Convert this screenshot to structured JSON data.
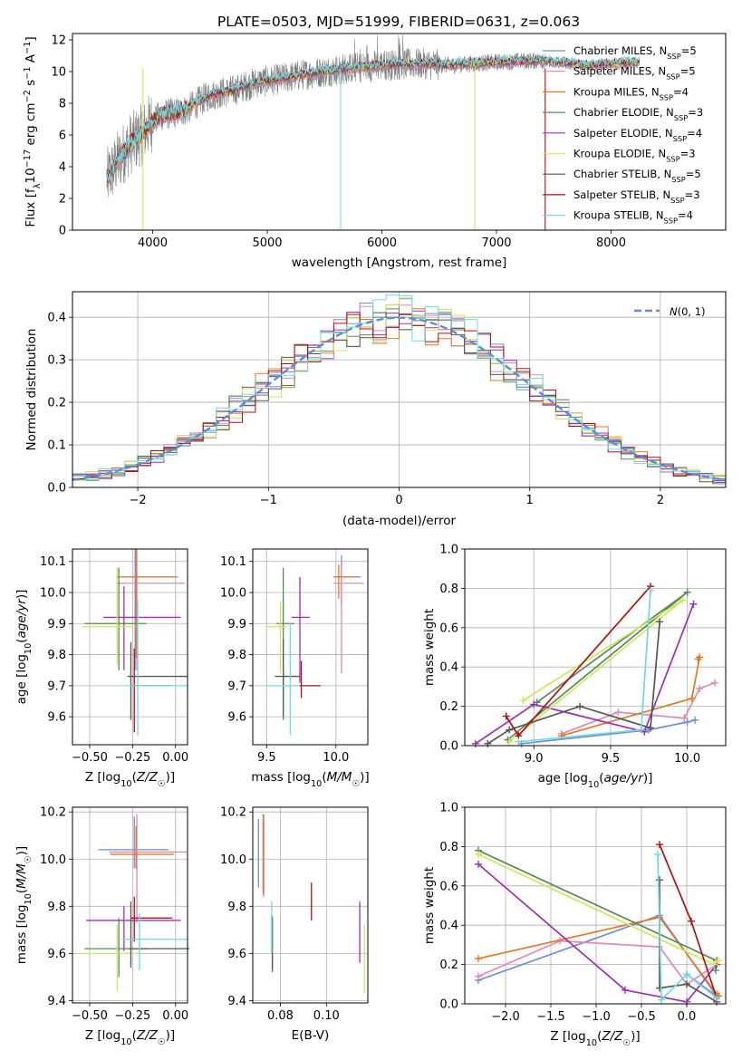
{
  "figure": {
    "title": "PLATE=0503, MJD=51999, FIBERID=0631, z=0.063"
  },
  "models": [
    {
      "label": "Chabrier MILES, N",
      "sub": "SSP",
      "tail": "=5",
      "color": "#6f8fd6"
    },
    {
      "label": "Salpeter MILES, N",
      "sub": "SSP",
      "tail": "=5",
      "color": "#e088b8"
    },
    {
      "label": "Kroupa MILES, N",
      "sub": "SSP",
      "tail": "=4",
      "color": "#e07a20"
    },
    {
      "label": "Chabrier ELODIE, N",
      "sub": "SSP",
      "tail": "=3",
      "color": "#5a8a5a"
    },
    {
      "label": "Salpeter ELODIE, N",
      "sub": "SSP",
      "tail": "=4",
      "color": "#9b30b0"
    },
    {
      "label": "Kroupa ELODIE, N",
      "sub": "SSP",
      "tail": "=3",
      "color": "#cce85a"
    },
    {
      "label": "Chabrier STELIB, N",
      "sub": "SSP",
      "tail": "=5",
      "color": "#555555"
    },
    {
      "label": "Salpeter STELIB, N",
      "sub": "SSP",
      "tail": "=3",
      "color": "#b01010"
    },
    {
      "label": "Kroupa STELIB, N",
      "sub": "SSP",
      "tail": "=4",
      "color": "#70d8e0"
    }
  ],
  "chart_data": [
    {
      "id": "spectrum",
      "type": "line",
      "xlabel": "wavelength [Angstrom, rest frame]",
      "ylabel_parts": [
        "Flux [f",
        "λ",
        "10",
        "−17",
        " erg cm",
        "−2",
        " s",
        "−1",
        " A",
        "−1",
        "]"
      ],
      "xlim": [
        3300,
        9000
      ],
      "ylim": [
        0,
        12.4
      ],
      "xticks": [
        4000,
        5000,
        6000,
        7000,
        8000
      ],
      "yticks": [
        0,
        2,
        4,
        6,
        8,
        10,
        12
      ],
      "data_color": "#808080",
      "data_x_range": [
        3600,
        7430
      ],
      "model_x_range": [
        3600,
        8250
      ],
      "continuum": [
        [
          3600,
          3.2
        ],
        [
          3700,
          4.4
        ],
        [
          3800,
          5.4
        ],
        [
          3900,
          6.0
        ],
        [
          4000,
          6.9
        ],
        [
          4100,
          7.3
        ],
        [
          4200,
          7.4
        ],
        [
          4300,
          7.6
        ],
        [
          4400,
          8.1
        ],
        [
          4500,
          8.5
        ],
        [
          4700,
          8.8
        ],
        [
          4900,
          9.3
        ],
        [
          5100,
          9.5
        ],
        [
          5300,
          9.8
        ],
        [
          5500,
          10.0
        ],
        [
          5700,
          10.2
        ],
        [
          6000,
          10.4
        ],
        [
          6300,
          10.5
        ],
        [
          6600,
          10.4
        ],
        [
          7000,
          10.6
        ],
        [
          7400,
          10.7
        ],
        [
          7800,
          10.4
        ],
        [
          8250,
          10.6
        ]
      ]
    },
    {
      "id": "residuals",
      "type": "step",
      "xlabel": "(data-model)/error",
      "ylabel": "Normed distribution",
      "xlim": [
        -2.5,
        2.5
      ],
      "ylim": [
        0,
        0.46
      ],
      "xticks": [
        -2,
        -1,
        0,
        1,
        2
      ],
      "yticks": [
        0.0,
        0.1,
        0.2,
        0.3,
        0.4
      ],
      "bin_width": 0.1,
      "reference": {
        "name": "N(0,1)",
        "mean": 0,
        "sigma": 1,
        "color": "#5b8ed6"
      }
    },
    {
      "id": "age-vs-Z",
      "type": "errorbar",
      "xlabel": "Z [log10(Z/Z☉)]",
      "ylabel": "age  [log10(age/yr)]",
      "xlim": [
        -0.6,
        0.07
      ],
      "ylim": [
        9.51,
        10.14
      ],
      "xticks": [
        -0.5,
        -0.25,
        0.0
      ],
      "yticks": [
        9.6,
        9.7,
        9.8,
        9.9,
        10.0,
        10.1
      ],
      "points": [
        {
          "x": -0.235,
          "y": 10.05,
          "xerr": [
            0.11,
            0.25
          ],
          "yerr": [
            0.3,
            0.09
          ]
        },
        {
          "x": -0.225,
          "y": 10.03,
          "xerr": [
            0.12,
            0.28
          ],
          "yerr": [
            0.28,
            0.11
          ]
        },
        {
          "x": -0.23,
          "y": 10.05,
          "xerr": [
            0.11,
            0.23
          ],
          "yerr": [
            0.26,
            0.09
          ]
        },
        {
          "x": -0.33,
          "y": 9.9,
          "xerr": [
            0.2,
            0.16
          ],
          "yerr": [
            0.15,
            0.18
          ]
        },
        {
          "x": -0.3,
          "y": 9.92,
          "xerr": [
            0.12,
            0.33
          ],
          "yerr": [
            0.17,
            0.1
          ]
        },
        {
          "x": -0.34,
          "y": 9.89,
          "xerr": [
            0.21,
            0.11
          ],
          "yerr": [
            0.12,
            0.19
          ]
        },
        {
          "x": -0.26,
          "y": 9.73,
          "xerr": [
            0.02,
            0.33
          ],
          "yerr": [
            0.14,
            0.11
          ]
        },
        {
          "x": -0.24,
          "y": 9.7,
          "xerr": [
            0.02,
            0.22
          ],
          "yerr": [
            0.15,
            0.12
          ]
        },
        {
          "x": -0.22,
          "y": 9.7,
          "xerr": [
            0.07,
            0.29
          ],
          "yerr": [
            0.16,
            0.28
          ]
        }
      ]
    },
    {
      "id": "age-vs-mass",
      "type": "errorbar",
      "xlabel": "mass [log10(M/M☉)]",
      "ylabel": "",
      "xlim": [
        9.4,
        10.23
      ],
      "ylim": [
        9.51,
        10.14
      ],
      "xticks": [
        9.5,
        10.0
      ],
      "yticks": [
        9.6,
        9.7,
        9.8,
        9.9,
        10.0,
        10.1
      ],
      "points": [
        {
          "x": 10.04,
          "y": 10.05,
          "xerr": [
            0.06,
            0.14
          ],
          "yerr": [
            0.09,
            0.07
          ]
        },
        {
          "x": 10.04,
          "y": 10.03,
          "xerr": [
            0.06,
            0.16
          ],
          "yerr": [
            0.29,
            0.07
          ]
        },
        {
          "x": 10.02,
          "y": 10.05,
          "xerr": [
            0.03,
            0.14
          ],
          "yerr": [
            0.07,
            0.04
          ]
        },
        {
          "x": 9.62,
          "y": 9.9,
          "xerr": [
            0.05,
            0.08
          ],
          "yerr": [
            0.31,
            0.18
          ]
        },
        {
          "x": 9.74,
          "y": 9.92,
          "xerr": [
            0.06,
            0.07
          ],
          "yerr": [
            0.21,
            0.13
          ]
        },
        {
          "x": 9.6,
          "y": 9.89,
          "xerr": [
            0.11,
            0.04
          ],
          "yerr": [
            0.15,
            0.08
          ]
        },
        {
          "x": 9.62,
          "y": 9.73,
          "xerr": [
            0.06,
            0.12
          ],
          "yerr": [
            0.13,
            0.12
          ]
        },
        {
          "x": 9.75,
          "y": 9.7,
          "xerr": [
            0.02,
            0.14
          ],
          "yerr": [
            0.04,
            0.08
          ]
        },
        {
          "x": 9.67,
          "y": 9.7,
          "xerr": [
            0.17,
            0.07
          ],
          "yerr": [
            0.16,
            0.2
          ]
        }
      ]
    },
    {
      "id": "weight-vs-age",
      "type": "line",
      "xlabel": "age  [log10(age/yr)]",
      "ylabel": "mass weight",
      "xlim": [
        8.55,
        10.25
      ],
      "ylim": [
        0,
        1.0
      ],
      "xticks": [
        9.0,
        9.5,
        10.0
      ],
      "yticks": [
        0.0,
        0.2,
        0.4,
        0.6,
        0.8,
        1.0
      ],
      "series": [
        {
          "x": [
            8.92,
            9.75,
            10.0,
            10.05
          ],
          "y": [
            0.01,
            0.08,
            0.12,
            0.13
          ]
        },
        {
          "x": [
            9.18,
            9.55,
            9.98,
            10.08,
            10.18
          ],
          "y": [
            0.06,
            0.17,
            0.14,
            0.29,
            0.32
          ]
        },
        {
          "x": [
            9.18,
            10.03,
            10.08,
            10.07
          ],
          "y": [
            0.05,
            0.24,
            0.45,
            0.44
          ]
        },
        {
          "x": [
            8.83,
            10.0,
            9.02
          ],
          "y": [
            0.03,
            0.78,
            0.22
          ]
        },
        {
          "x": [
            8.62,
            9.0,
            9.72,
            10.04
          ],
          "y": [
            0.01,
            0.21,
            0.07,
            0.72
          ]
        },
        {
          "x": [
            8.84,
            9.97,
            8.93
          ],
          "y": [
            0.02,
            0.74,
            0.23
          ]
        },
        {
          "x": [
            8.7,
            8.84,
            9.3,
            9.76,
            9.82
          ],
          "y": [
            0.01,
            0.08,
            0.2,
            0.09,
            0.63
          ]
        },
        {
          "x": [
            8.82,
            8.9,
            9.76
          ],
          "y": [
            0.15,
            0.05,
            0.81
          ]
        },
        {
          "x": [
            8.9,
            9.7,
            9.76
          ],
          "y": [
            0.02,
            0.08,
            0.79
          ]
        }
      ]
    },
    {
      "id": "mass-vs-Z",
      "type": "errorbar",
      "xlabel": "Z [log10(Z/Z☉)]",
      "ylabel": "mass [log10(M/M☉)]",
      "xlim": [
        -0.6,
        0.07
      ],
      "ylim": [
        9.39,
        10.22
      ],
      "xticks": [
        -0.5,
        -0.25,
        0.0
      ],
      "yticks": [
        9.4,
        9.6,
        9.8,
        10.0,
        10.2
      ],
      "points": [
        {
          "x": -0.24,
          "y": 10.04,
          "xerr": [
            0.21,
            0.2
          ],
          "yerr": [
            0.08,
            0.14
          ]
        },
        {
          "x": -0.225,
          "y": 10.03,
          "xerr": [
            0.16,
            0.29
          ],
          "yerr": [
            0.3,
            0.16
          ]
        },
        {
          "x": -0.23,
          "y": 10.02,
          "xerr": [
            0.15,
            0.22
          ],
          "yerr": [
            0.06,
            0.12
          ]
        },
        {
          "x": -0.33,
          "y": 9.62,
          "xerr": [
            0.2,
            0.17
          ],
          "yerr": [
            0.12,
            0.13
          ]
        },
        {
          "x": -0.3,
          "y": 9.74,
          "xerr": [
            0.22,
            0.33
          ],
          "yerr": [
            0.13,
            0.06
          ]
        },
        {
          "x": -0.34,
          "y": 9.6,
          "xerr": [
            0.22,
            0.14
          ],
          "yerr": [
            0.16,
            0.12
          ]
        },
        {
          "x": -0.26,
          "y": 9.62,
          "xerr": [
            0.01,
            0.34
          ],
          "yerr": [
            0.08,
            0.2
          ]
        },
        {
          "x": -0.24,
          "y": 9.75,
          "xerr": [
            0.02,
            0.22
          ],
          "yerr": [
            0.1,
            0.09
          ]
        },
        {
          "x": -0.21,
          "y": 9.66,
          "xerr": [
            0.1,
            0.28
          ],
          "yerr": [
            0.13,
            0.11
          ]
        }
      ]
    },
    {
      "id": "mass-vs-ebv",
      "type": "errorbar",
      "xlabel": "E(B-V)",
      "ylabel": "",
      "xlim": [
        0.068,
        0.118
      ],
      "ylim": [
        9.39,
        10.22
      ],
      "xticks": [
        0.08,
        0.1
      ],
      "yticks": [
        9.4,
        9.6,
        9.8,
        10.0,
        10.2
      ],
      "points": [
        {
          "x": 0.0705,
          "y": 10.04,
          "xerr": [
            0,
            0
          ],
          "yerr": [
            0.16,
            0.13
          ]
        },
        {
          "x": 0.0728,
          "y": 10.03,
          "xerr": [
            0,
            0
          ],
          "yerr": [
            0.19,
            0.16
          ]
        },
        {
          "x": 0.0725,
          "y": 10.02,
          "xerr": [
            0,
            0
          ],
          "yerr": [
            0.17,
            0.17
          ]
        },
        {
          "x": 0.0765,
          "y": 9.62,
          "xerr": [
            0,
            0
          ],
          "yerr": [
            0.1,
            0.14
          ]
        },
        {
          "x": 0.1145,
          "y": 9.74,
          "xerr": [
            0,
            0
          ],
          "yerr": [
            0.18,
            0.08
          ]
        },
        {
          "x": 0.1165,
          "y": 9.6,
          "xerr": [
            0,
            0
          ],
          "yerr": [
            0.17,
            0.12
          ]
        },
        {
          "x": 0.0765,
          "y": 9.62,
          "xerr": [
            0,
            0
          ],
          "yerr": [
            0.09,
            0.13
          ]
        },
        {
          "x": 0.0935,
          "y": 9.82,
          "xerr": [
            0,
            0
          ],
          "yerr": [
            0.08,
            0.08
          ]
        },
        {
          "x": 0.0762,
          "y": 9.75,
          "xerr": [
            0,
            0
          ],
          "yerr": [
            0.15,
            0.07
          ]
        }
      ]
    },
    {
      "id": "weight-vs-Z",
      "type": "line",
      "xlabel": "Z [log10(Z/Z☉)]",
      "ylabel": "mass weight",
      "xlim": [
        -2.45,
        0.43
      ],
      "ylim": [
        0,
        1.0
      ],
      "xticks": [
        -2.0,
        -1.5,
        -1.0,
        -0.5,
        0.0
      ],
      "yticks": [
        0.0,
        0.2,
        0.4,
        0.6,
        0.8,
        1.0
      ],
      "series": [
        {
          "x": [
            -2.3,
            -0.3,
            0.33,
            0.0
          ],
          "y": [
            0.12,
            0.45,
            0.04,
            0.15
          ]
        },
        {
          "x": [
            -2.3,
            -1.4,
            -0.3,
            0.0,
            0.33
          ],
          "y": [
            0.14,
            0.32,
            0.29,
            0.1,
            0.2
          ]
        },
        {
          "x": [
            -2.3,
            -0.3,
            0.33,
            0.35
          ],
          "y": [
            0.23,
            0.44,
            0.05,
            0.04
          ]
        },
        {
          "x": [
            -2.3,
            0.33,
            0.32
          ],
          "y": [
            0.78,
            0.22,
            0.17
          ]
        },
        {
          "x": [
            -2.3,
            -0.68,
            0.0,
            0.33
          ],
          "y": [
            0.71,
            0.07,
            0.01,
            0.2
          ]
        },
        {
          "x": [
            -2.3,
            0.3,
            0.35
          ],
          "y": [
            0.76,
            0.2,
            0.22
          ]
        },
        {
          "x": [
            -0.3,
            -0.3,
            0.0,
            0.33
          ],
          "y": [
            0.63,
            0.08,
            0.1,
            0.01
          ]
        },
        {
          "x": [
            -0.3,
            0.05,
            0.33
          ],
          "y": [
            0.81,
            0.42,
            0.03
          ]
        },
        {
          "x": [
            -0.32,
            -0.28,
            0.0,
            0.33
          ],
          "y": [
            0.76,
            0.02,
            0.15,
            0.03
          ]
        }
      ]
    }
  ]
}
